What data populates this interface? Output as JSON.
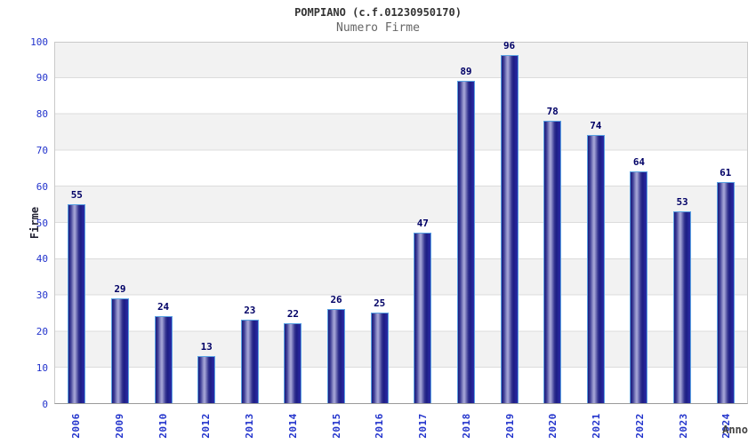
{
  "chart_data": {
    "type": "bar",
    "title": "POMPIANO (c.f.01230950170)",
    "subtitle": "Numero Firme",
    "xlabel": "Anno",
    "ylabel": "Firme",
    "categories": [
      "2006",
      "2009",
      "2010",
      "2012",
      "2013",
      "2014",
      "2015",
      "2016",
      "2017",
      "2018",
      "2019",
      "2020",
      "2021",
      "2022",
      "2023",
      "2024"
    ],
    "values": [
      55,
      29,
      24,
      13,
      23,
      22,
      26,
      25,
      47,
      89,
      96,
      78,
      74,
      64,
      53,
      61
    ],
    "ylim": [
      0,
      100
    ],
    "ytick_step": 10,
    "grid": true,
    "legend": "none",
    "colors": {
      "bar_edge": "#1a1a7c",
      "bar_center": "#a9a9d9",
      "bar_border": "#5aa2e2",
      "tick_label": "#2233cc",
      "value_label": "#000066",
      "band_gray": "#f2f2f2",
      "gridline": "#dcdcdc"
    }
  }
}
